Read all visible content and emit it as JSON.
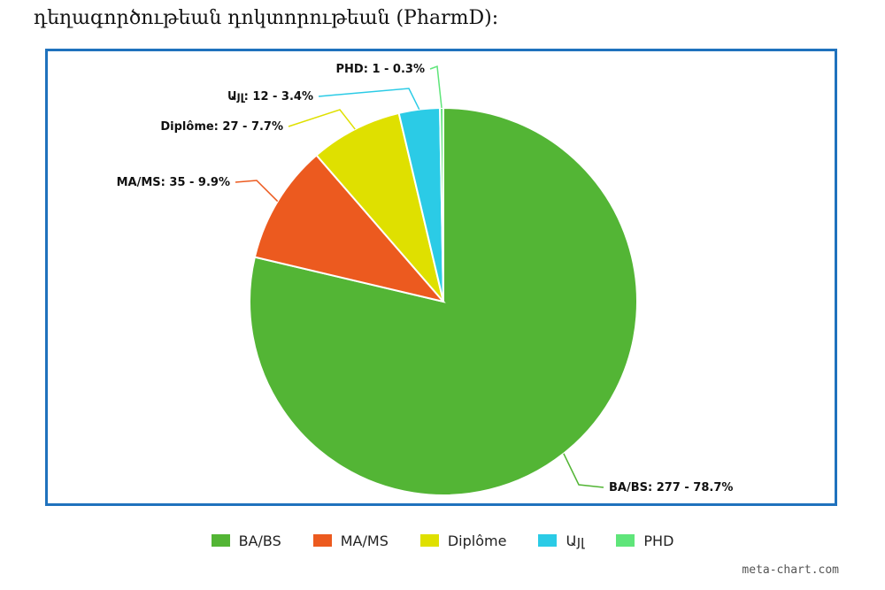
{
  "page": {
    "heading": "դեղագործութեան դոկտորութեան (PharmD):",
    "watermark": "meta-chart.com"
  },
  "chart_data": {
    "type": "pie",
    "title": "",
    "slices": [
      {
        "label": "BA/BS",
        "value": 277,
        "percent": 78.7,
        "color": "#53b535",
        "callout": "BA/BS: 277 - 78.7%"
      },
      {
        "label": "MA/MS",
        "value": 35,
        "percent": 9.9,
        "color": "#ec5a1f",
        "callout": "MA/MS: 35 - 9.9%"
      },
      {
        "label": "Diplôme",
        "value": 27,
        "percent": 7.7,
        "color": "#dfe000",
        "callout": "Diplôme: 27 - 7.7%"
      },
      {
        "label": "Այլ",
        "value": 12,
        "percent": 3.4,
        "color": "#2bcbe6",
        "callout": "Այլ: 12 - 3.4%"
      },
      {
        "label": "PHD",
        "value": 1,
        "percent": 0.3,
        "color": "#5fe57a",
        "callout": "PHD: 1 - 0.3%"
      }
    ],
    "start_angle": "top, clockwise",
    "legend_position": "bottom-center"
  }
}
